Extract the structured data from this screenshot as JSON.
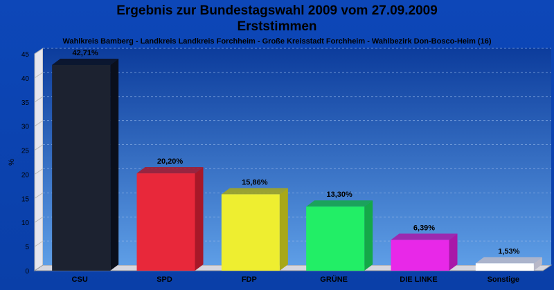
{
  "chart_data": {
    "type": "bar",
    "title": "Ergebnis zur Bundestagswahl 2009 vom 27.09.2009",
    "title2": "Erststimmen",
    "subtitle": "Wahlkreis Bamberg - Landkreis Landkreis Forchheim - Große Kreisstadt Forchheim - Wahlbezirk Don-Bosco-Heim (16)",
    "ylabel": "%",
    "ylim": [
      0,
      45
    ],
    "yticks": [
      0,
      5,
      10,
      15,
      20,
      25,
      30,
      35,
      40,
      45
    ],
    "grid": true,
    "categories": [
      "CSU",
      "SPD",
      "FDP",
      "GRÜNE",
      "DIE LINKE",
      "Sonstige"
    ],
    "values": [
      42.71,
      20.2,
      15.86,
      13.3,
      6.39,
      1.53
    ],
    "labels": [
      "42,71%",
      "20,20%",
      "15,86%",
      "13,30%",
      "6,39%",
      "1,53%"
    ],
    "colors": [
      "#1c2230",
      "#e8283a",
      "#eeee30",
      "#22ee66",
      "#e828e8",
      "#ffffff"
    ],
    "side_colors": [
      "#0a0f1c",
      "#a81828",
      "#a8a818",
      "#14a848",
      "#a818a8",
      "#b8b8c8"
    ]
  }
}
